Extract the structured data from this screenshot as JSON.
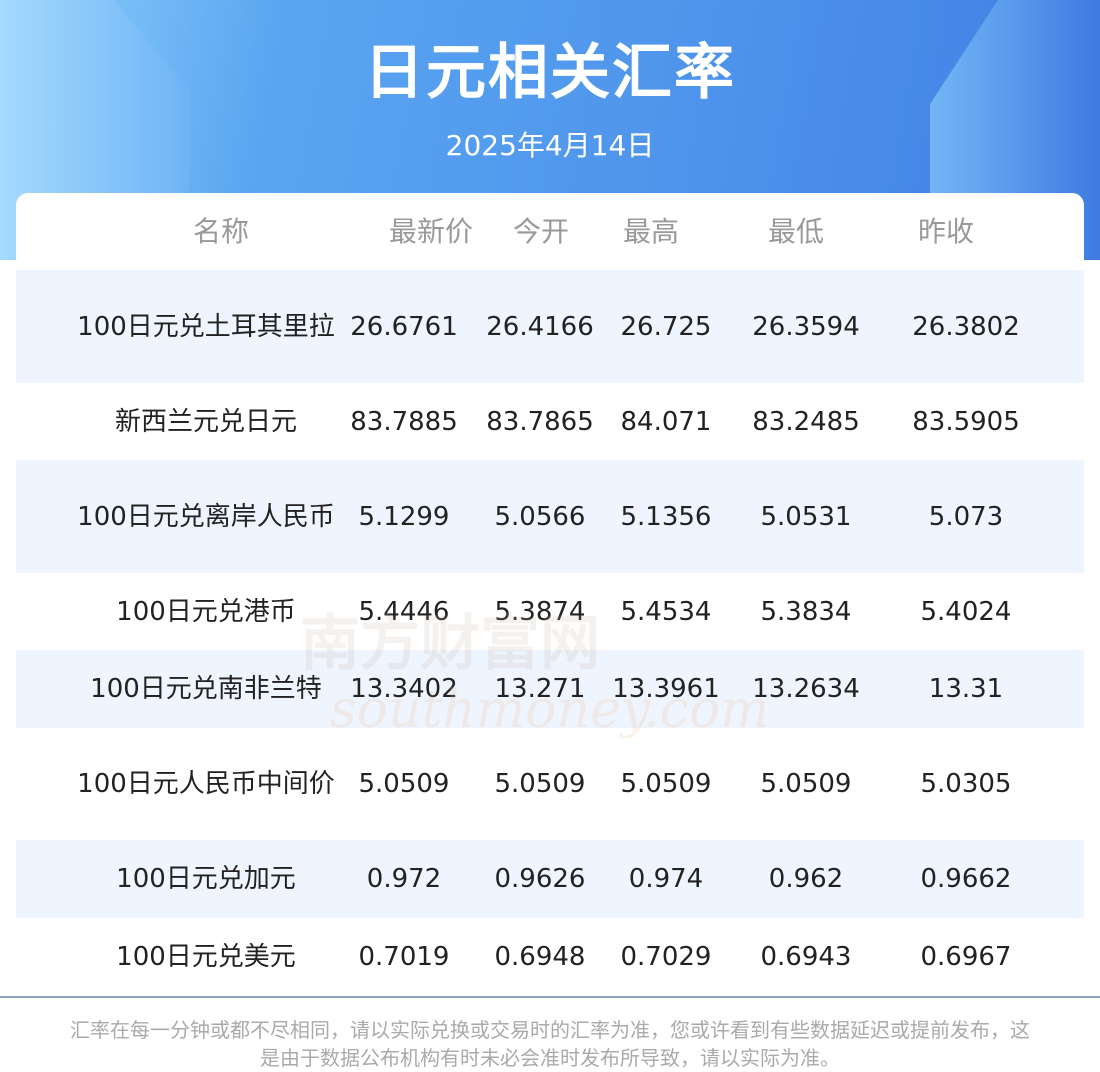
{
  "header": {
    "title": "日元相关汇率",
    "date": "2025年4月14日"
  },
  "table": {
    "columns": [
      "名称",
      "最新价",
      "今开",
      "最高",
      "最低",
      "昨收"
    ],
    "rows": [
      [
        "100日元兑土耳其里拉",
        "26.6761",
        "26.4166",
        "26.725",
        "26.3594",
        "26.3802"
      ],
      [
        "新西兰元兑日元",
        "83.7885",
        "83.7865",
        "84.071",
        "83.2485",
        "83.5905"
      ],
      [
        "100日元兑离岸人民币",
        "5.1299",
        "5.0566",
        "5.1356",
        "5.0531",
        "5.073"
      ],
      [
        "100日元兑港币",
        "5.4446",
        "5.3874",
        "5.4534",
        "5.3834",
        "5.4024"
      ],
      [
        "100日元兑南非兰特",
        "13.3402",
        "13.271",
        "13.3961",
        "13.2634",
        "13.31"
      ],
      [
        "100日元人民币中间价",
        "5.0509",
        "5.0509",
        "5.0509",
        "5.0509",
        "5.0305"
      ],
      [
        "100日元兑加元",
        "0.972",
        "0.9626",
        "0.974",
        "0.962",
        "0.9662"
      ],
      [
        "100日元兑美元",
        "0.7019",
        "0.6948",
        "0.7029",
        "0.6943",
        "0.6967"
      ]
    ]
  },
  "watermark": {
    "cn": "南方财富网",
    "en": "southmoney.com"
  },
  "footer": "汇率在每一分钟或都不尽相同，请以实际兑换或交易时的汇率为准，您或许看到有些数据延迟或提前发布，这是由于数据公布机构有时未必会准时发布所导致，请以实际为准。",
  "colors": {
    "banner": "#4f95ec",
    "alt_row": "#eef5fe",
    "header_text": "#999999",
    "divider": "#8aa3c3"
  }
}
